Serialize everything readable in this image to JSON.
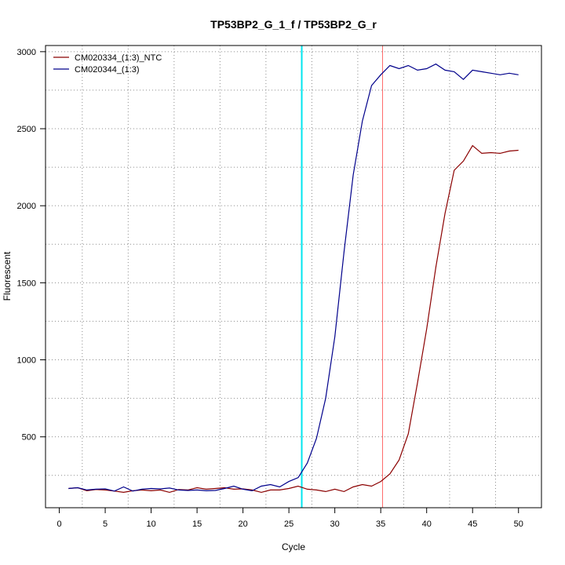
{
  "chart_data": {
    "type": "line",
    "title": "TP53BP2_G_1_f / TP53BP2_G_r",
    "xlabel": "Cycle",
    "ylabel": "Fluorescent",
    "xlim": [
      -1.5,
      52.5
    ],
    "ylim": [
      40,
      3040
    ],
    "xticks": [
      0,
      5,
      10,
      15,
      20,
      25,
      30,
      35,
      40,
      45,
      50
    ],
    "yticks": [
      500,
      1000,
      1500,
      2000,
      2500,
      3000
    ],
    "grid": true,
    "legend_position": "top-left",
    "x": [
      1,
      2,
      3,
      4,
      5,
      6,
      7,
      8,
      9,
      10,
      11,
      12,
      13,
      14,
      15,
      16,
      17,
      18,
      19,
      20,
      21,
      22,
      23,
      24,
      25,
      26,
      27,
      28,
      29,
      30,
      31,
      32,
      33,
      34,
      35,
      36,
      37,
      38,
      39,
      40,
      41,
      42,
      43,
      44,
      45,
      46,
      47,
      48,
      49,
      50
    ],
    "series": [
      {
        "name": "CM020334_(1:3)_NTC",
        "color": "#8b0000",
        "values": [
          165,
          170,
          150,
          158,
          155,
          148,
          140,
          150,
          155,
          150,
          155,
          140,
          158,
          155,
          170,
          160,
          165,
          170,
          160,
          162,
          155,
          140,
          155,
          155,
          165,
          180,
          160,
          155,
          145,
          160,
          145,
          175,
          190,
          180,
          210,
          260,
          350,
          520,
          850,
          1200,
          1600,
          1950,
          2230,
          2290,
          2390,
          2340,
          2345,
          2340,
          2355,
          2360
        ]
      },
      {
        "name": "CM020344_(1:3)",
        "color": "#00008b",
        "values": [
          165,
          170,
          155,
          160,
          162,
          148,
          175,
          148,
          160,
          165,
          162,
          168,
          155,
          152,
          155,
          150,
          152,
          165,
          180,
          160,
          150,
          180,
          190,
          175,
          210,
          235,
          330,
          490,
          750,
          1150,
          1700,
          2200,
          2550,
          2780,
          2850,
          2910,
          2890,
          2910,
          2880,
          2890,
          2920,
          2880,
          2870,
          2820,
          2880,
          2870,
          2860,
          2850,
          2860,
          2850
        ]
      }
    ],
    "vlines": [
      {
        "x": 26.4,
        "color": "#00e5ee"
      },
      {
        "x": 35.2,
        "color": "#ff6a6a"
      }
    ]
  }
}
